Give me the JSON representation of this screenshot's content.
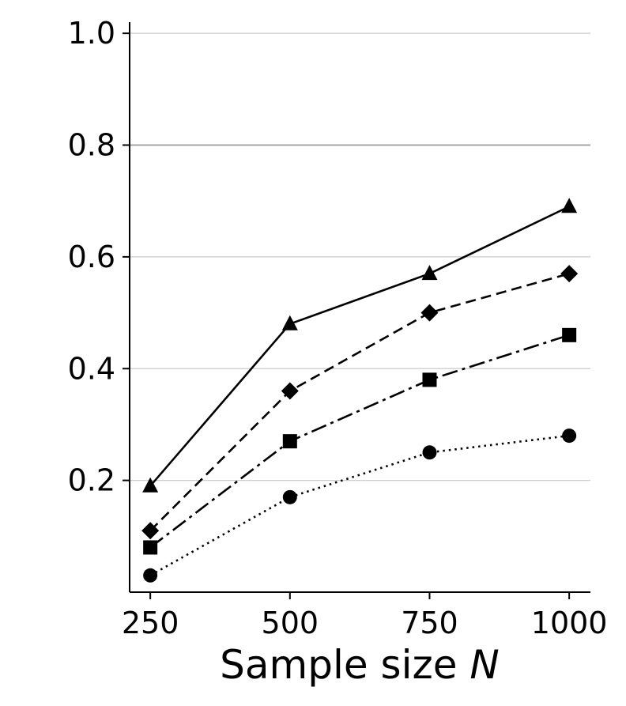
{
  "chart_data": {
    "type": "line",
    "title": "",
    "xlabel": "Sample size",
    "xlabel_var": "N",
    "ylabel": "",
    "x": [
      250,
      500,
      750,
      1000
    ],
    "xlim": [
      213,
      1038
    ],
    "ylim": [
      0.0,
      1.02
    ],
    "xticks": [
      "250",
      "500",
      "750",
      "1000"
    ],
    "yticks": [
      "0.2",
      "0.4",
      "0.6",
      "0.8",
      "1.0"
    ],
    "ytick_values": [
      0.2,
      0.4,
      0.6,
      0.8,
      1.0
    ],
    "grid": "horizontal",
    "highlight_gridline": 0.8,
    "series": [
      {
        "marker": "triangle",
        "linestyle": "solid",
        "values": [
          0.19,
          0.48,
          0.57,
          0.69
        ]
      },
      {
        "marker": "diamond",
        "linestyle": "dashed",
        "values": [
          0.11,
          0.36,
          0.5,
          0.57
        ]
      },
      {
        "marker": "square",
        "linestyle": "dashdot",
        "values": [
          0.08,
          0.27,
          0.38,
          0.46
        ]
      },
      {
        "marker": "circle",
        "linestyle": "dotted",
        "values": [
          0.03,
          0.17,
          0.25,
          0.28
        ]
      }
    ],
    "colors": {
      "line": "#000000",
      "grid": "#cccccc",
      "grid_highlight": "#999999"
    }
  }
}
